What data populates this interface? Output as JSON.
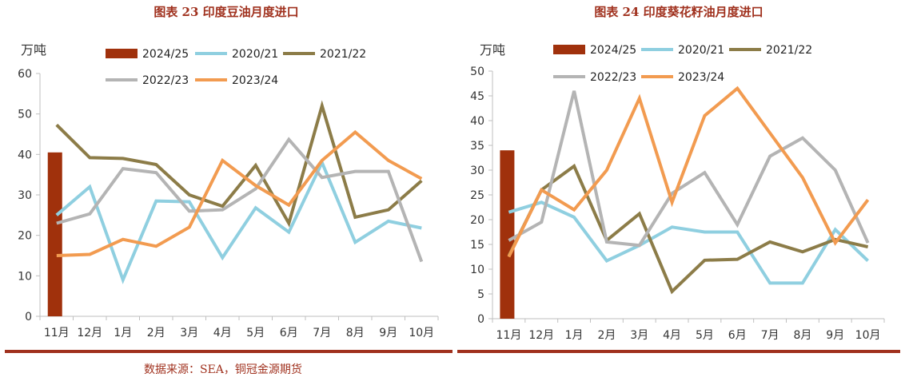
{
  "source": "数据来源：SEA，铜冠金源期货",
  "colors": {
    "2024/25": "#a0310c",
    "2020/21": "#8fcfe0",
    "2021/22": "#8c7c48",
    "2022/23": "#b4b4b4",
    "2023/24": "#f29b50",
    "title": "#a0311e"
  },
  "chart_data": [
    {
      "type": "line",
      "title": "图表 23  印度豆油月度进口",
      "ylabel": "万吨",
      "ylim": [
        0,
        60
      ],
      "yticks": [
        0,
        10,
        20,
        30,
        40,
        50,
        60
      ],
      "categories": [
        "11月",
        "12月",
        "1月",
        "2月",
        "3月",
        "4月",
        "5月",
        "6月",
        "7月",
        "8月",
        "9月",
        "10月"
      ],
      "bar_series": {
        "name": "2024/25",
        "values": [
          40.5
        ]
      },
      "series": [
        {
          "name": "2020/21",
          "values": [
            25,
            32,
            9,
            28.5,
            28.3,
            14.5,
            26.8,
            20.8,
            38,
            18.3,
            23.5,
            21.8
          ]
        },
        {
          "name": "2021/22",
          "values": [
            47.3,
            39.2,
            39,
            37.5,
            30,
            27.2,
            37.3,
            23,
            52,
            24.5,
            26.3,
            33.5
          ]
        },
        {
          "name": "2022/23",
          "values": [
            23,
            25.3,
            36.5,
            35.5,
            26,
            26.3,
            31.5,
            43.7,
            34.3,
            35.8,
            35.8,
            13.5
          ]
        },
        {
          "name": "2023/24",
          "values": [
            15,
            15.3,
            19,
            17.3,
            22,
            38.5,
            32.3,
            27.5,
            38.5,
            45.5,
            38.5,
            34
          ]
        }
      ]
    },
    {
      "type": "line",
      "title": "图表 24  印度葵花籽油月度进口",
      "ylabel": "万吨",
      "ylim": [
        0,
        50
      ],
      "yticks": [
        0,
        5,
        10,
        15,
        20,
        25,
        30,
        35,
        40,
        45,
        50
      ],
      "categories": [
        "11月",
        "12月",
        "1月",
        "2月",
        "3月",
        "4月",
        "5月",
        "6月",
        "7月",
        "8月",
        "9月",
        "10月"
      ],
      "bar_series": {
        "name": "2024/25",
        "values": [
          34
        ]
      },
      "series": [
        {
          "name": "2020/21",
          "values": [
            21.5,
            23.5,
            20.5,
            11.7,
            14.8,
            18.5,
            17.5,
            17.5,
            7.2,
            7.2,
            18,
            11.7
          ]
        },
        {
          "name": "2021/22",
          "values": [
            12.7,
            26,
            30.8,
            15.8,
            21.2,
            5.5,
            11.8,
            12,
            15.5,
            13.5,
            16,
            14.5
          ]
        },
        {
          "name": "2022/23",
          "values": [
            15.8,
            19.5,
            46,
            15.5,
            14.8,
            25.3,
            29.5,
            19,
            32.8,
            36.5,
            30,
            15.3
          ]
        },
        {
          "name": "2023/24",
          "values": [
            12.5,
            26,
            22,
            30,
            44.5,
            23.5,
            41,
            46.5,
            37.5,
            28.5,
            15.3,
            24
          ]
        }
      ]
    }
  ]
}
